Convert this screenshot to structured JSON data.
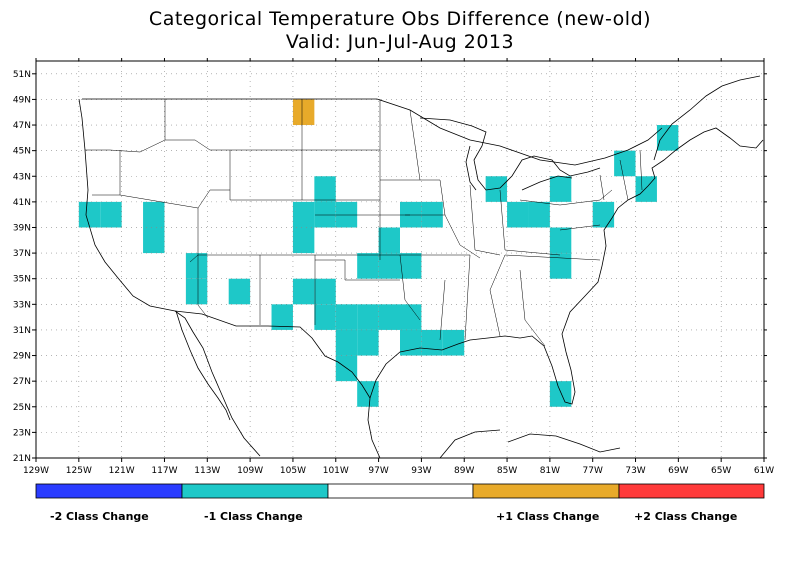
{
  "title": "Categorical Temperature Obs Difference (new-old)",
  "subtitle": "Valid: Jun-Jul-Aug 2013",
  "map": {
    "lon_range": [
      -129,
      -61
    ],
    "lat_range": [
      21,
      52
    ],
    "x_ticks": [
      "129W",
      "125W",
      "121W",
      "117W",
      "113W",
      "109W",
      "105W",
      "101W",
      "97W",
      "93W",
      "89W",
      "85W",
      "81W",
      "77W",
      "73W",
      "69W",
      "65W",
      "61W"
    ],
    "y_ticks": [
      "21N",
      "23N",
      "25N",
      "27N",
      "29N",
      "31N",
      "33N",
      "35N",
      "37N",
      "39N",
      "41N",
      "43N",
      "45N",
      "47N",
      "49N",
      "51N"
    ],
    "grid": true
  },
  "colors": {
    "minus2": "#2a3cff",
    "minus1": "#1ec8c8",
    "zero": "#ffffff",
    "plus1": "#e8aa2a",
    "plus2": "#ff3a3a",
    "border": "#000000"
  },
  "legend": {
    "minus2_label": "-2 Class Change",
    "minus1_label": "-1 Class Change",
    "plus1_label": "+1 Class Change",
    "plus2_label": "+2 Class Change"
  },
  "cells_minus1": [
    [
      -124,
      40
    ],
    [
      -122,
      40
    ],
    [
      -118,
      40
    ],
    [
      -118,
      38
    ],
    [
      -114,
      36
    ],
    [
      -114,
      34
    ],
    [
      -110,
      34
    ],
    [
      -104,
      40
    ],
    [
      -104,
      38
    ],
    [
      -102,
      42
    ],
    [
      -102,
      40
    ],
    [
      -100,
      40
    ],
    [
      -96,
      36
    ],
    [
      -98,
      36
    ],
    [
      -96,
      38
    ],
    [
      -94,
      40
    ],
    [
      -92,
      40
    ],
    [
      -94,
      36
    ],
    [
      -104,
      34
    ],
    [
      -102,
      34
    ],
    [
      -106,
      32
    ],
    [
      -102,
      32
    ],
    [
      -100,
      32
    ],
    [
      -98,
      32
    ],
    [
      -96,
      32
    ],
    [
      -100,
      30
    ],
    [
      -98,
      30
    ],
    [
      -100,
      28
    ],
    [
      -98,
      26
    ],
    [
      -94,
      32
    ],
    [
      -94,
      30
    ],
    [
      -92,
      30
    ],
    [
      -90,
      30
    ],
    [
      -86,
      42
    ],
    [
      -84,
      40
    ],
    [
      -82,
      40
    ],
    [
      -80,
      42
    ],
    [
      -80,
      38
    ],
    [
      -80,
      36
    ],
    [
      -76,
      40
    ],
    [
      -74,
      44
    ],
    [
      -72,
      42
    ],
    [
      -70,
      46
    ],
    [
      -80,
      26
    ]
  ],
  "cells_plus1": [
    [
      -104,
      48
    ]
  ]
}
